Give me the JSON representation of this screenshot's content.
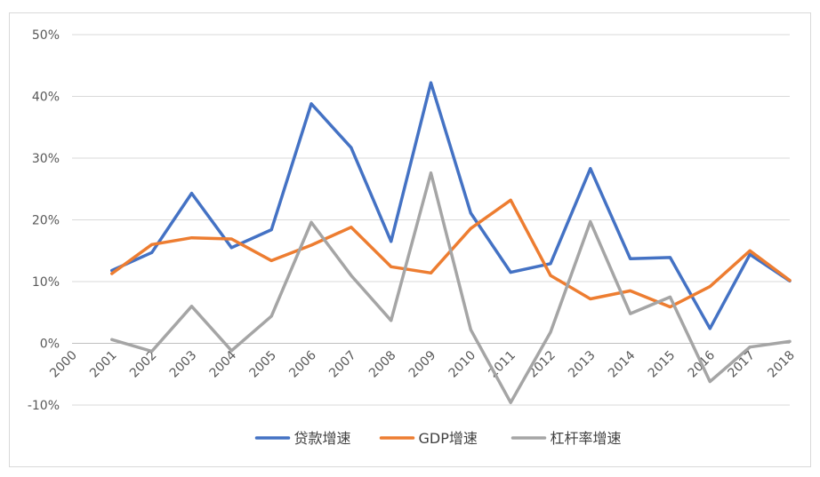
{
  "chart_data": {
    "type": "line",
    "x": [
      "2000",
      "2001",
      "2002",
      "2003",
      "2004",
      "2005",
      "2006",
      "2007",
      "2008",
      "2009",
      "2010",
      "2011",
      "2012",
      "2013",
      "2014",
      "2015",
      "2016",
      "2017",
      "2018"
    ],
    "ylim": [
      -10,
      50
    ],
    "yticks": [
      -10,
      0,
      10,
      20,
      30,
      40,
      50
    ],
    "ytick_labels": [
      "-10%",
      "0%",
      "10%",
      "20%",
      "30%",
      "40%",
      "50%"
    ],
    "grid": true,
    "legend_position": "bottom",
    "series": [
      {
        "name": "贷款增速",
        "color": "#4472c4",
        "values": [
          null,
          11.8,
          14.7,
          24.3,
          15.5,
          18.4,
          38.8,
          31.7,
          16.5,
          42.2,
          21.1,
          11.5,
          12.9,
          28.3,
          13.7,
          13.9,
          2.4,
          14.4,
          10.1
        ]
      },
      {
        "name": "GDP增速",
        "color": "#ed7d31",
        "values": [
          null,
          11.3,
          16.0,
          17.1,
          16.9,
          13.4,
          15.9,
          18.8,
          12.4,
          11.4,
          18.6,
          23.2,
          11.0,
          7.2,
          8.5,
          5.9,
          9.2,
          15.0,
          10.2
        ]
      },
      {
        "name": "杠杆率增速",
        "color": "#a5a5a5",
        "values": [
          null,
          0.6,
          -1.3,
          6.0,
          -1.2,
          4.4,
          19.6,
          11.0,
          3.7,
          27.6,
          2.2,
          -9.6,
          1.8,
          19.7,
          4.8,
          7.5,
          -6.2,
          -0.6,
          0.3
        ]
      }
    ]
  }
}
